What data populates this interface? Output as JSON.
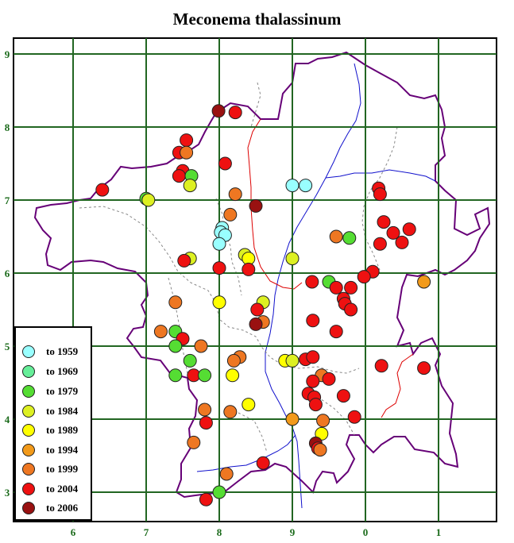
{
  "title": "Meconema thalassinum",
  "grid": {
    "x_labels": [
      "6",
      "7",
      "8",
      "9",
      "0",
      "1"
    ],
    "y_labels": [
      "9",
      "8",
      "7",
      "6",
      "5",
      "4",
      "3"
    ]
  },
  "legend": [
    {
      "label": "to 1959",
      "color": "#99ffff"
    },
    {
      "label": "to 1969",
      "color": "#66ee99"
    },
    {
      "label": "to 1979",
      "color": "#55dd33"
    },
    {
      "label": "to 1984",
      "color": "#ddf022"
    },
    {
      "label": "to 1989",
      "color": "#ffff00"
    },
    {
      "label": "to 1994",
      "color": "#f29a1a"
    },
    {
      "label": "to 1999",
      "color": "#ee7722"
    },
    {
      "label": "to 2004",
      "color": "#ee1111"
    },
    {
      "label": "to 2006",
      "color": "#991111"
    }
  ],
  "records": [
    {
      "x": 7.99,
      "y": 8.22,
      "period": 8
    },
    {
      "x": 8.22,
      "y": 8.2,
      "period": 7
    },
    {
      "x": 7.55,
      "y": 7.82,
      "period": 7
    },
    {
      "x": 7.45,
      "y": 7.65,
      "period": 7
    },
    {
      "x": 7.55,
      "y": 7.65,
      "period": 6
    },
    {
      "x": 8.08,
      "y": 7.5,
      "period": 7
    },
    {
      "x": 7.5,
      "y": 7.4,
      "period": 7
    },
    {
      "x": 7.45,
      "y": 7.33,
      "period": 7
    },
    {
      "x": 7.62,
      "y": 7.33,
      "period": 2
    },
    {
      "x": 7.6,
      "y": 7.2,
      "period": 3
    },
    {
      "x": 6.4,
      "y": 7.14,
      "period": 7
    },
    {
      "x": 7.0,
      "y": 7.02,
      "period": 2
    },
    {
      "x": 7.03,
      "y": 7.0,
      "period": 3
    },
    {
      "x": 8.22,
      "y": 7.08,
      "period": 6
    },
    {
      "x": 8.5,
      "y": 6.92,
      "period": 8
    },
    {
      "x": 9.0,
      "y": 7.2,
      "period": 0
    },
    {
      "x": 9.18,
      "y": 7.2,
      "period": 0
    },
    {
      "x": 10.18,
      "y": 7.16,
      "period": 7
    },
    {
      "x": 10.2,
      "y": 7.08,
      "period": 7
    },
    {
      "x": 8.15,
      "y": 6.8,
      "period": 6
    },
    {
      "x": 8.04,
      "y": 6.62,
      "period": 0
    },
    {
      "x": 8.02,
      "y": 6.56,
      "period": 0
    },
    {
      "x": 8.08,
      "y": 6.52,
      "period": 0
    },
    {
      "x": 8.0,
      "y": 6.4,
      "period": 0
    },
    {
      "x": 10.25,
      "y": 6.7,
      "period": 7
    },
    {
      "x": 10.38,
      "y": 6.55,
      "period": 7
    },
    {
      "x": 10.6,
      "y": 6.6,
      "period": 7
    },
    {
      "x": 10.5,
      "y": 6.42,
      "period": 7
    },
    {
      "x": 10.2,
      "y": 6.4,
      "period": 7
    },
    {
      "x": 9.6,
      "y": 6.5,
      "period": 6
    },
    {
      "x": 9.78,
      "y": 6.48,
      "period": 2
    },
    {
      "x": 8.35,
      "y": 6.25,
      "period": 3
    },
    {
      "x": 8.4,
      "y": 6.2,
      "period": 4
    },
    {
      "x": 9.0,
      "y": 6.2,
      "period": 3
    },
    {
      "x": 7.6,
      "y": 6.2,
      "period": 3
    },
    {
      "x": 7.52,
      "y": 6.17,
      "period": 7
    },
    {
      "x": 8.0,
      "y": 6.07,
      "period": 7
    },
    {
      "x": 8.4,
      "y": 6.05,
      "period": 7
    },
    {
      "x": 10.1,
      "y": 6.02,
      "period": 7
    },
    {
      "x": 9.98,
      "y": 5.95,
      "period": 7
    },
    {
      "x": 9.27,
      "y": 5.88,
      "period": 7
    },
    {
      "x": 9.5,
      "y": 5.88,
      "period": 2
    },
    {
      "x": 10.8,
      "y": 5.88,
      "period": 5
    },
    {
      "x": 9.6,
      "y": 5.8,
      "period": 7
    },
    {
      "x": 9.8,
      "y": 5.8,
      "period": 7
    },
    {
      "x": 9.7,
      "y": 5.65,
      "period": 7
    },
    {
      "x": 9.72,
      "y": 5.58,
      "period": 7
    },
    {
      "x": 9.8,
      "y": 5.5,
      "period": 7
    },
    {
      "x": 7.4,
      "y": 5.6,
      "period": 6
    },
    {
      "x": 8.0,
      "y": 5.6,
      "period": 4
    },
    {
      "x": 8.6,
      "y": 5.6,
      "period": 3
    },
    {
      "x": 8.52,
      "y": 5.5,
      "period": 7
    },
    {
      "x": 8.6,
      "y": 5.33,
      "period": 6
    },
    {
      "x": 8.5,
      "y": 5.3,
      "period": 8
    },
    {
      "x": 9.28,
      "y": 5.35,
      "period": 7
    },
    {
      "x": 9.6,
      "y": 5.2,
      "period": 7
    },
    {
      "x": 7.2,
      "y": 5.2,
      "period": 6
    },
    {
      "x": 7.4,
      "y": 5.2,
      "period": 2
    },
    {
      "x": 7.5,
      "y": 5.1,
      "period": 7
    },
    {
      "x": 7.4,
      "y": 5.0,
      "period": 2
    },
    {
      "x": 7.75,
      "y": 5.0,
      "period": 6
    },
    {
      "x": 8.28,
      "y": 4.85,
      "period": 6
    },
    {
      "x": 8.2,
      "y": 4.8,
      "period": 6
    },
    {
      "x": 7.6,
      "y": 4.8,
      "period": 2
    },
    {
      "x": 8.9,
      "y": 4.8,
      "period": 4
    },
    {
      "x": 9.0,
      "y": 4.8,
      "period": 3
    },
    {
      "x": 9.18,
      "y": 4.82,
      "period": 7
    },
    {
      "x": 9.28,
      "y": 4.85,
      "period": 7
    },
    {
      "x": 10.22,
      "y": 4.73,
      "period": 7
    },
    {
      "x": 10.8,
      "y": 4.7,
      "period": 7
    },
    {
      "x": 7.4,
      "y": 4.6,
      "period": 2
    },
    {
      "x": 7.65,
      "y": 4.6,
      "period": 7
    },
    {
      "x": 7.8,
      "y": 4.6,
      "period": 2
    },
    {
      "x": 8.18,
      "y": 4.6,
      "period": 4
    },
    {
      "x": 9.4,
      "y": 4.6,
      "period": 6
    },
    {
      "x": 9.28,
      "y": 4.52,
      "period": 7
    },
    {
      "x": 9.5,
      "y": 4.55,
      "period": 7
    },
    {
      "x": 9.22,
      "y": 4.35,
      "period": 7
    },
    {
      "x": 9.3,
      "y": 4.3,
      "period": 7
    },
    {
      "x": 9.32,
      "y": 4.2,
      "period": 7
    },
    {
      "x": 9.7,
      "y": 4.32,
      "period": 7
    },
    {
      "x": 8.4,
      "y": 4.2,
      "period": 4
    },
    {
      "x": 7.8,
      "y": 4.13,
      "period": 6
    },
    {
      "x": 8.15,
      "y": 4.1,
      "period": 6
    },
    {
      "x": 7.82,
      "y": 3.95,
      "period": 7
    },
    {
      "x": 9.0,
      "y": 4.0,
      "period": 5
    },
    {
      "x": 9.42,
      "y": 3.98,
      "period": 6
    },
    {
      "x": 9.85,
      "y": 4.03,
      "period": 7
    },
    {
      "x": 9.4,
      "y": 3.8,
      "period": 4
    },
    {
      "x": 7.65,
      "y": 3.68,
      "period": 6
    },
    {
      "x": 9.32,
      "y": 3.67,
      "period": 8
    },
    {
      "x": 9.35,
      "y": 3.6,
      "period": 7
    },
    {
      "x": 9.38,
      "y": 3.58,
      "period": 6
    },
    {
      "x": 8.6,
      "y": 3.4,
      "period": 7
    },
    {
      "x": 8.1,
      "y": 3.25,
      "period": 6
    },
    {
      "x": 8.0,
      "y": 3.0,
      "period": 2
    },
    {
      "x": 7.82,
      "y": 2.9,
      "period": 7
    }
  ]
}
